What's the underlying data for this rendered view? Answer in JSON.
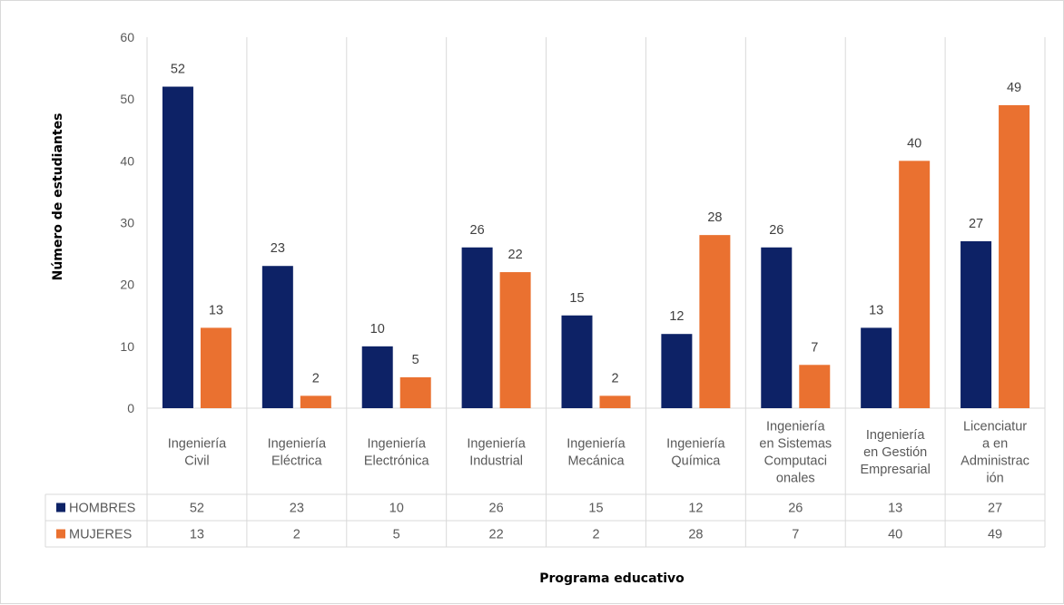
{
  "chart_data": {
    "type": "bar",
    "xlabel": "Programa educativo",
    "ylabel": "Número de estudiantes",
    "ylim": [
      0,
      60
    ],
    "yticks": [
      0,
      10,
      20,
      30,
      40,
      50,
      60
    ],
    "grid": "vertical separators",
    "legend": "table-left",
    "categories": [
      "Ingeniería Civil",
      "Ingeniería Eléctrica",
      "Ingeniería Electrónica",
      "Ingeniería Industrial",
      "Ingeniería Mecánica",
      "Ingeniería Química",
      "Ingeniería en Sistemas Computacionales",
      "Ingeniería en Gestión Empresarial",
      "Licenciatura en Administración"
    ],
    "category_lines": [
      [
        "Ingeniería",
        "Civil"
      ],
      [
        "Ingeniería",
        "Eléctrica"
      ],
      [
        "Ingeniería",
        "Electrónica"
      ],
      [
        "Ingeniería",
        "Industrial"
      ],
      [
        "Ingeniería",
        "Mecánica"
      ],
      [
        "Ingeniería",
        "Química"
      ],
      [
        "Ingeniería",
        "en Sistemas",
        "Computaci",
        "onales"
      ],
      [
        "Ingeniería",
        "en Gestión",
        "Empresarial"
      ],
      [
        "Licenciatur",
        "a en",
        "Administrac",
        "ión"
      ]
    ],
    "series": [
      {
        "name": "HOMBRES",
        "color": "#0d2266",
        "values": [
          52,
          23,
          10,
          26,
          15,
          12,
          26,
          13,
          27
        ]
      },
      {
        "name": "MUJERES",
        "color": "#ea7130",
        "values": [
          13,
          2,
          5,
          22,
          2,
          28,
          7,
          40,
          49
        ]
      }
    ]
  }
}
